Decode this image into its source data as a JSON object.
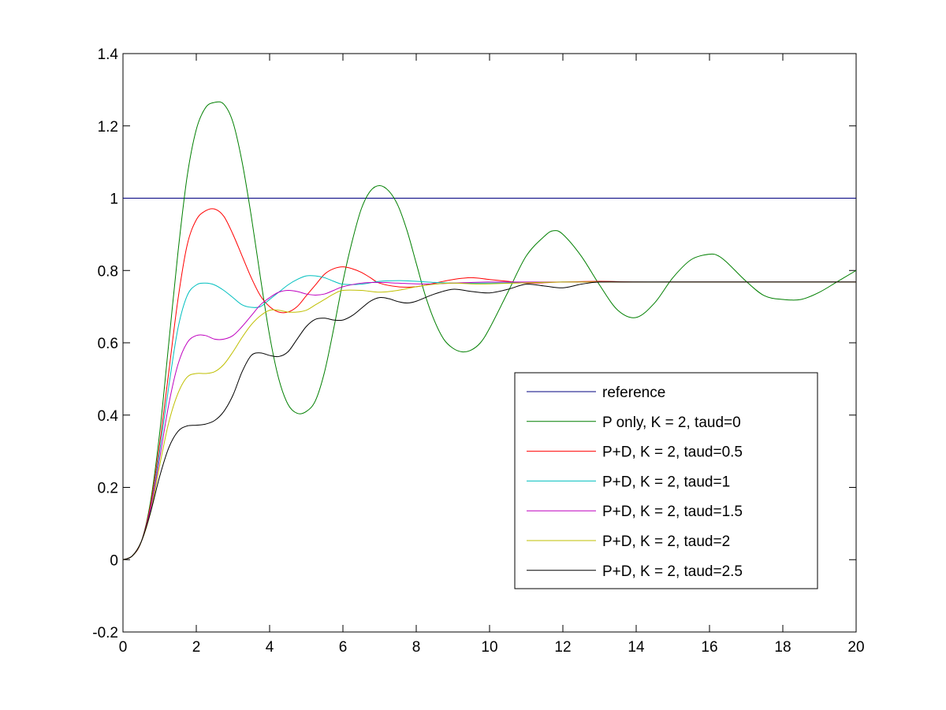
{
  "chart_data": {
    "type": "line",
    "title": "",
    "xlabel": "",
    "ylabel": "",
    "xlim": [
      0,
      20
    ],
    "ylim": [
      -0.2,
      1.4
    ],
    "xticks": [
      0,
      2,
      4,
      6,
      8,
      10,
      12,
      14,
      16,
      18,
      20
    ],
    "yticks": [
      -0.2,
      0,
      0.2,
      0.4,
      0.6,
      0.8,
      1,
      1.2,
      1.4
    ],
    "xtick_labels": [
      "0",
      "2",
      "4",
      "6",
      "8",
      "10",
      "12",
      "14",
      "16",
      "18",
      "20"
    ],
    "ytick_labels": [
      "-0.2",
      "0",
      "0.2",
      "0.4",
      "0.6",
      "0.8",
      "1",
      "1.2",
      "1.4"
    ],
    "grid": false,
    "legend_position": "lower-right",
    "series": [
      {
        "name": "reference",
        "color": "#00007f",
        "x": [
          0,
          20
        ],
        "y": [
          1,
          1
        ]
      },
      {
        "name": "P only, K = 2, taud=0",
        "color": "#007f00",
        "x": [
          0,
          0.25,
          0.5,
          0.75,
          1,
          1.25,
          1.5,
          1.75,
          2,
          2.25,
          2.5,
          2.75,
          3,
          3.25,
          3.5,
          3.75,
          4,
          4.25,
          4.5,
          4.75,
          5,
          5.25,
          5.5,
          5.75,
          6,
          6.25,
          6.5,
          6.75,
          7,
          7.25,
          7.5,
          7.75,
          8,
          8.25,
          8.5,
          8.75,
          9,
          9.25,
          9.5,
          9.75,
          10,
          10.5,
          11,
          11.5,
          11.75,
          12,
          12.5,
          13,
          13.5,
          14,
          14.5,
          15,
          15.5,
          16,
          16.25,
          16.5,
          17,
          17.5,
          18,
          18.5,
          19,
          19.5,
          20
        ],
        "y": [
          0,
          0.01,
          0.05,
          0.16,
          0.35,
          0.6,
          0.85,
          1.06,
          1.19,
          1.25,
          1.265,
          1.26,
          1.21,
          1.1,
          0.95,
          0.78,
          0.62,
          0.5,
          0.43,
          0.405,
          0.41,
          0.44,
          0.52,
          0.64,
          0.77,
          0.88,
          0.97,
          1.02,
          1.035,
          1.02,
          0.98,
          0.91,
          0.82,
          0.73,
          0.66,
          0.61,
          0.585,
          0.575,
          0.58,
          0.6,
          0.64,
          0.74,
          0.84,
          0.895,
          0.91,
          0.9,
          0.84,
          0.76,
          0.69,
          0.67,
          0.71,
          0.78,
          0.83,
          0.845,
          0.84,
          0.82,
          0.77,
          0.73,
          0.72,
          0.72,
          0.74,
          0.77,
          0.8
        ]
      },
      {
        "name": "P+D, K = 2, taud=0.5",
        "color": "#ff0000",
        "x": [
          0,
          0.25,
          0.5,
          0.75,
          1,
          1.25,
          1.5,
          1.75,
          2,
          2.25,
          2.5,
          2.75,
          3,
          3.25,
          3.5,
          3.75,
          4,
          4.25,
          4.5,
          4.75,
          5,
          5.25,
          5.5,
          5.75,
          6,
          6.25,
          6.5,
          6.75,
          7,
          7.5,
          8,
          8.5,
          9,
          9.5,
          10,
          10.5,
          11,
          12,
          13,
          14,
          15,
          16,
          17,
          18,
          19,
          20
        ],
        "y": [
          0,
          0.01,
          0.05,
          0.15,
          0.32,
          0.52,
          0.72,
          0.87,
          0.94,
          0.965,
          0.97,
          0.95,
          0.9,
          0.84,
          0.78,
          0.73,
          0.7,
          0.685,
          0.685,
          0.7,
          0.73,
          0.76,
          0.79,
          0.805,
          0.81,
          0.805,
          0.795,
          0.78,
          0.765,
          0.755,
          0.755,
          0.765,
          0.775,
          0.78,
          0.775,
          0.77,
          0.765,
          0.768,
          0.77,
          0.768,
          0.768,
          0.768,
          0.768,
          0.768,
          0.768,
          0.768
        ]
      },
      {
        "name": "P+D, K = 2, taud=1",
        "color": "#00bfbf",
        "x": [
          0,
          0.25,
          0.5,
          0.75,
          1,
          1.25,
          1.5,
          1.75,
          2,
          2.25,
          2.5,
          2.75,
          3,
          3.25,
          3.5,
          3.75,
          4,
          4.25,
          4.5,
          4.75,
          5,
          5.25,
          5.5,
          5.75,
          6,
          6.5,
          7,
          7.5,
          8,
          8.5,
          9,
          10,
          11,
          12,
          13,
          14,
          15,
          16,
          17,
          18,
          19,
          20
        ],
        "y": [
          0,
          0.01,
          0.05,
          0.14,
          0.3,
          0.48,
          0.64,
          0.73,
          0.76,
          0.765,
          0.76,
          0.745,
          0.725,
          0.705,
          0.698,
          0.7,
          0.72,
          0.74,
          0.76,
          0.775,
          0.785,
          0.785,
          0.78,
          0.77,
          0.762,
          0.762,
          0.77,
          0.772,
          0.77,
          0.767,
          0.765,
          0.765,
          0.766,
          0.768,
          0.768,
          0.768,
          0.768,
          0.768,
          0.768,
          0.768,
          0.768,
          0.768
        ]
      },
      {
        "name": "P+D, K = 2, taud=1.5",
        "color": "#bf00bf",
        "x": [
          0,
          0.25,
          0.5,
          0.75,
          1,
          1.25,
          1.5,
          1.75,
          2,
          2.25,
          2.5,
          2.75,
          3,
          3.25,
          3.5,
          3.75,
          4,
          4.25,
          4.5,
          4.75,
          5,
          5.25,
          5.5,
          5.75,
          6,
          6.5,
          7,
          7.5,
          8,
          8.5,
          9,
          10,
          11,
          12,
          13,
          14,
          15,
          16,
          17,
          18,
          19,
          20
        ],
        "y": [
          0,
          0.01,
          0.05,
          0.14,
          0.28,
          0.43,
          0.54,
          0.6,
          0.62,
          0.62,
          0.61,
          0.61,
          0.62,
          0.645,
          0.675,
          0.705,
          0.725,
          0.74,
          0.745,
          0.742,
          0.735,
          0.732,
          0.735,
          0.745,
          0.755,
          0.765,
          0.767,
          0.765,
          0.763,
          0.763,
          0.765,
          0.768,
          0.768,
          0.768,
          0.768,
          0.768,
          0.768,
          0.768,
          0.768,
          0.768,
          0.768,
          0.768
        ]
      },
      {
        "name": "P+D, K = 2, taud=2",
        "color": "#bfbf00",
        "x": [
          0,
          0.25,
          0.5,
          0.75,
          1,
          1.25,
          1.5,
          1.75,
          2,
          2.25,
          2.5,
          2.75,
          3,
          3.25,
          3.5,
          3.75,
          4,
          4.25,
          4.5,
          4.75,
          5,
          5.25,
          5.5,
          5.75,
          6,
          6.5,
          7,
          7.5,
          8,
          8.5,
          9,
          9.5,
          10,
          11,
          12,
          13,
          14,
          15,
          16,
          17,
          18,
          19,
          20
        ],
        "y": [
          0,
          0.01,
          0.05,
          0.13,
          0.26,
          0.38,
          0.46,
          0.505,
          0.515,
          0.515,
          0.52,
          0.54,
          0.575,
          0.615,
          0.65,
          0.675,
          0.69,
          0.69,
          0.685,
          0.685,
          0.69,
          0.705,
          0.72,
          0.735,
          0.745,
          0.745,
          0.74,
          0.745,
          0.755,
          0.762,
          0.765,
          0.763,
          0.763,
          0.766,
          0.768,
          0.768,
          0.768,
          0.768,
          0.768,
          0.768,
          0.768,
          0.768,
          0.768
        ]
      },
      {
        "name": "P+D, K = 2, taud=2.5",
        "color": "#000000",
        "x": [
          0,
          0.25,
          0.5,
          0.75,
          1,
          1.25,
          1.5,
          1.75,
          2,
          2.25,
          2.5,
          2.75,
          3,
          3.25,
          3.5,
          3.75,
          4,
          4.25,
          4.5,
          4.75,
          5,
          5.25,
          5.5,
          5.75,
          6,
          6.25,
          6.5,
          6.75,
          7,
          7.25,
          7.5,
          7.75,
          8,
          8.5,
          9,
          9.5,
          10,
          10.5,
          11,
          11.5,
          12,
          12.5,
          13,
          14,
          15,
          16,
          17,
          18,
          19,
          20
        ],
        "y": [
          0,
          0.01,
          0.05,
          0.13,
          0.23,
          0.31,
          0.355,
          0.37,
          0.372,
          0.375,
          0.385,
          0.41,
          0.455,
          0.52,
          0.565,
          0.572,
          0.565,
          0.562,
          0.575,
          0.61,
          0.645,
          0.665,
          0.668,
          0.663,
          0.663,
          0.675,
          0.695,
          0.715,
          0.725,
          0.722,
          0.714,
          0.71,
          0.715,
          0.735,
          0.748,
          0.742,
          0.738,
          0.748,
          0.762,
          0.757,
          0.752,
          0.762,
          0.768,
          0.768,
          0.768,
          0.768,
          0.768,
          0.768,
          0.768,
          0.768
        ]
      }
    ]
  }
}
